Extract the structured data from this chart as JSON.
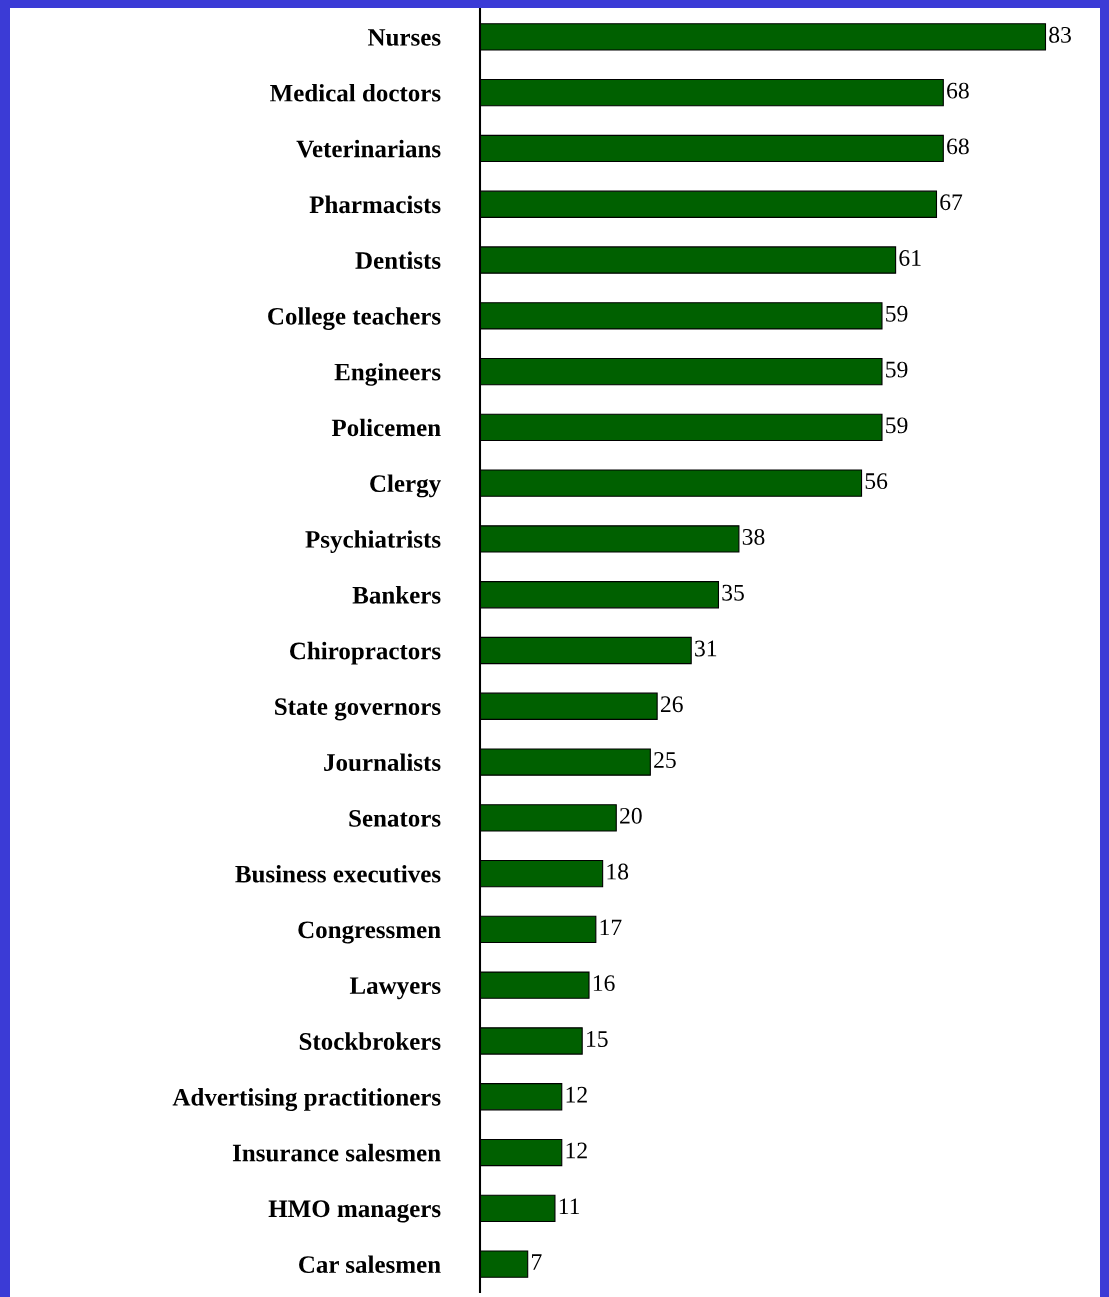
{
  "chart_data": {
    "type": "bar",
    "orientation": "horizontal",
    "categories": [
      "Nurses",
      "Medical doctors",
      "Veterinarians",
      "Pharmacists",
      "Dentists",
      "College teachers",
      "Engineers",
      "Policemen",
      "Clergy",
      "Psychiatrists",
      "Bankers",
      "Chiropractors",
      "State governors",
      "Journalists",
      "Senators",
      "Business executives",
      "Congressmen",
      "Lawyers",
      "Stockbrokers",
      "Advertising practitioners",
      "Insurance salesmen",
      "HMO managers",
      "Car salesmen"
    ],
    "values": [
      83,
      68,
      68,
      67,
      61,
      59,
      59,
      59,
      56,
      38,
      35,
      31,
      26,
      25,
      20,
      18,
      17,
      16,
      15,
      12,
      12,
      11,
      7
    ],
    "color": "#006000",
    "xlim": [
      0,
      91
    ],
    "tick_labels": "y",
    "data_labels": true,
    "grid": false,
    "legend": false
  }
}
